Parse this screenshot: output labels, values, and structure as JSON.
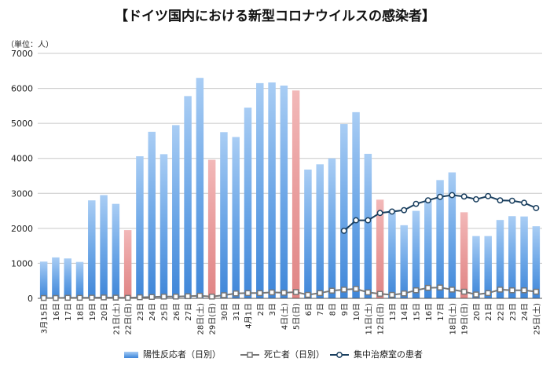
{
  "chart_data": {
    "type": "bar",
    "title": "【ドイツ国内における新型コロナウイルスの感染者】",
    "ylabel": "（単位：人）",
    "ylim": [
      0,
      7000
    ],
    "yticks": [
      0,
      1000,
      2000,
      3000,
      4000,
      5000,
      6000,
      7000
    ],
    "grid": true,
    "legend_position": "bottom",
    "categories": [
      "3月15日",
      "16日",
      "17日",
      "18日",
      "19日",
      "20日",
      "21日(土)",
      "22日(日)",
      "23日",
      "24日",
      "25日",
      "26日",
      "27日",
      "28日(土)",
      "29日(日)",
      "30日",
      "31日",
      "4月1日",
      "2日",
      "3日",
      "4日(土)",
      "5日(日)",
      "6日",
      "7日",
      "8日",
      "9日",
      "10日",
      "11日(土)",
      "12日(日)",
      "13日",
      "14日",
      "15日",
      "16日",
      "17日",
      "18日(土)",
      "19日(日)",
      "20日",
      "21日",
      "22日",
      "23日",
      "24日",
      "25日(土)"
    ],
    "highlight_categories": [
      "22日(日)",
      "29日(日)",
      "5日(日)",
      "12日(日)",
      "19日(日)"
    ],
    "colors": {
      "bar": "#6aa5e6",
      "bar_highlight": "#e89a9a",
      "deaths_line": "#777777",
      "icu_line": "#1a3f5f"
    },
    "series": [
      {
        "name": "陽性反応者（日別）",
        "kind": "bar",
        "values": [
          1050,
          1170,
          1140,
          1040,
          2800,
          2950,
          2700,
          1950,
          4060,
          4760,
          4120,
          4950,
          5780,
          6300,
          3960,
          4750,
          4610,
          5450,
          6150,
          6170,
          6080,
          5940,
          3680,
          3830,
          4000,
          4980,
          5320,
          4130,
          2820,
          2520,
          2090,
          2500,
          2800,
          3380,
          3600,
          2460,
          1780,
          1780,
          2240,
          2350,
          2340,
          2060
        ]
      },
      {
        "name": "死亡者（日別）",
        "kind": "line",
        "values": [
          10,
          10,
          15,
          15,
          20,
          25,
          20,
          15,
          30,
          40,
          50,
          50,
          60,
          75,
          50,
          90,
          140,
          150,
          150,
          170,
          160,
          180,
          100,
          150,
          220,
          250,
          270,
          170,
          130,
          100,
          140,
          230,
          300,
          310,
          250,
          190,
          110,
          150,
          250,
          230,
          230,
          190
        ]
      },
      {
        "name": "集中治療室の患者",
        "kind": "line",
        "values": [
          null,
          null,
          null,
          null,
          null,
          null,
          null,
          null,
          null,
          null,
          null,
          null,
          null,
          null,
          null,
          null,
          null,
          null,
          null,
          null,
          null,
          null,
          null,
          null,
          null,
          1930,
          2230,
          2230,
          2440,
          2480,
          2520,
          2700,
          2800,
          2900,
          2950,
          2910,
          2830,
          2920,
          2800,
          2790,
          2730,
          2580
        ]
      }
    ]
  }
}
